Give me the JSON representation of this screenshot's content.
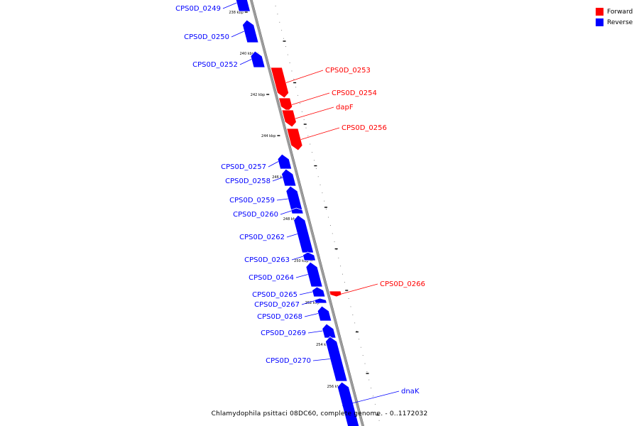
{
  "caption": "Chlamydophila psittaci 08DC60, complete genome. - 0..1172032",
  "legend": [
    {
      "label": "Forward",
      "color": "#ff0000"
    },
    {
      "label": "Reverse",
      "color": "#0000ff"
    }
  ],
  "colors": {
    "forward": "#ff0000",
    "reverse": "#0000ff",
    "backbone": "#999999"
  },
  "genes": [
    {
      "name": "CPS0D_0249",
      "strand": "reverse"
    },
    {
      "name": "CPS0D_0250",
      "strand": "reverse"
    },
    {
      "name": "CPS0D_0252",
      "strand": "reverse"
    },
    {
      "name": "CPS0D_0253",
      "strand": "forward"
    },
    {
      "name": "CPS0D_0254",
      "strand": "forward"
    },
    {
      "name": "dapF",
      "strand": "forward"
    },
    {
      "name": "CPS0D_0256",
      "strand": "forward"
    },
    {
      "name": "CPS0D_0257",
      "strand": "reverse"
    },
    {
      "name": "CPS0D_0258",
      "strand": "reverse"
    },
    {
      "name": "CPS0D_0259",
      "strand": "reverse"
    },
    {
      "name": "CPS0D_0260",
      "strand": "reverse"
    },
    {
      "name": "CPS0D_0262",
      "strand": "reverse"
    },
    {
      "name": "CPS0D_0263",
      "strand": "reverse"
    },
    {
      "name": "CPS0D_0264",
      "strand": "reverse"
    },
    {
      "name": "CPS0D_0265",
      "strand": "reverse"
    },
    {
      "name": "CPS0D_0266",
      "strand": "forward"
    },
    {
      "name": "CPS0D_0267",
      "strand": "reverse"
    },
    {
      "name": "CPS0D_0268",
      "strand": "reverse"
    },
    {
      "name": "CPS0D_0269",
      "strand": "reverse"
    },
    {
      "name": "CPS0D_0270",
      "strand": "reverse"
    },
    {
      "name": "dnaK",
      "strand": "reverse"
    }
  ],
  "ticks": [
    "238 kbp",
    "240 kbp",
    "242 kbp",
    "244 kbp",
    "246 kbp",
    "248 kbp",
    "250 kbp",
    "252 kbp",
    "254 kbp",
    "256 kbp"
  ]
}
